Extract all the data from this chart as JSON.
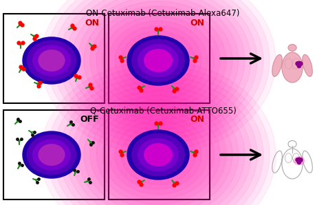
{
  "title_top": "ON-Cetuximab (Cetuximab-Alexa647)",
  "title_bottom": "Q-Cetuximab (Cetuximab-ATTO655)",
  "label_on": "ON",
  "label_off": "OFF",
  "bg_color": "#ffffff",
  "cell_color_dark": "#3a0080",
  "cell_color_mid": "#6600cc",
  "cell_nucleus_color": "#cc00cc",
  "glow_color_pink": "#ff00aa",
  "body_color_top": "#f0b0c0",
  "body_color_bottom": "#e8e8e8",
  "antibody_green": "#228B22",
  "antibody_dot": "#ff0000",
  "tumor_color": "#8B008B",
  "on_color": "#cc0000",
  "off_color": "#000000"
}
